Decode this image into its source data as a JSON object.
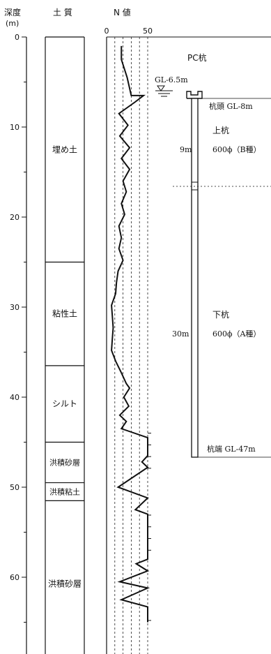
{
  "headers": {
    "depth": "深度",
    "depth_unit": "(m)",
    "soil": "土 質",
    "n_value": "N 値"
  },
  "depth_axis": {
    "min": 0,
    "max": 70,
    "ticks": [
      {
        "v": 0,
        "label": "0"
      },
      {
        "v": 10,
        "label": "10"
      },
      {
        "v": 20,
        "label": "20"
      },
      {
        "v": 30,
        "label": "30"
      },
      {
        "v": 40,
        "label": "40"
      },
      {
        "v": 50,
        "label": "50"
      },
      {
        "v": 60,
        "label": "60"
      }
    ]
  },
  "n_axis": {
    "min": 0,
    "max": 50,
    "ticks": [
      {
        "v": 0,
        "label": "0"
      },
      {
        "v": 50,
        "label": "50"
      }
    ],
    "grid": [
      10,
      20,
      30,
      40,
      50
    ]
  },
  "soil_layers": [
    {
      "name": "埋め土",
      "from": 0,
      "to": 25
    },
    {
      "name": "粘性土",
      "from": 25,
      "to": 36.5
    },
    {
      "name": "シルト",
      "from": 36.5,
      "to": 45
    },
    {
      "name": "洪積砂層",
      "from": 45,
      "to": 49.5
    },
    {
      "name": "洪積粘土",
      "from": 49.5,
      "to": 51.5
    },
    {
      "name": "洪積砂層",
      "from": 51.5,
      "to": 70
    }
  ],
  "chart_data": {
    "type": "line",
    "xlabel": "N 値",
    "ylabel": "深度 (m)",
    "xlim": [
      0,
      50
    ],
    "ylim": [
      0,
      70
    ],
    "series": [
      {
        "points": [
          [
            18,
            1
          ],
          [
            18,
            2.5
          ],
          [
            25,
            4.5
          ],
          [
            30,
            6.5
          ],
          [
            45,
            6.5
          ],
          [
            35,
            7.2
          ],
          [
            15,
            8.5
          ],
          [
            26,
            9.8
          ],
          [
            16,
            11
          ],
          [
            28,
            12.3
          ],
          [
            18,
            13.5
          ],
          [
            28,
            14.7
          ],
          [
            20,
            16
          ],
          [
            24,
            17.2
          ],
          [
            18,
            18.5
          ],
          [
            22,
            19.7
          ],
          [
            15,
            21
          ],
          [
            18,
            22.3
          ],
          [
            15,
            23.5
          ],
          [
            20,
            24.8
          ],
          [
            14,
            26
          ],
          [
            12,
            27.3
          ],
          [
            11,
            28.5
          ],
          [
            6,
            29.8
          ],
          [
            7,
            31
          ],
          [
            8,
            32.3
          ],
          [
            7,
            33.5
          ],
          [
            6,
            34.8
          ],
          [
            11,
            36
          ],
          [
            18,
            37.3
          ],
          [
            24,
            38.5
          ],
          [
            28,
            39
          ],
          [
            21,
            40
          ],
          [
            27,
            41
          ],
          [
            16,
            42
          ],
          [
            24,
            42.7
          ],
          [
            18,
            43.5
          ],
          [
            50,
            44.5
          ],
          [
            50,
            45.5
          ],
          [
            50,
            46.5
          ],
          [
            43,
            47.2
          ],
          [
            50,
            47.8
          ],
          [
            14,
            50
          ],
          [
            50,
            51.2
          ],
          [
            35,
            52.5
          ],
          [
            50,
            53
          ],
          [
            50,
            58
          ],
          [
            36,
            58.5
          ],
          [
            50,
            59.3
          ],
          [
            16,
            60.5
          ],
          [
            50,
            61.2
          ],
          [
            18,
            62.5
          ],
          [
            50,
            63.3
          ],
          [
            50,
            65
          ]
        ]
      }
    ]
  },
  "pile": {
    "title": "PC杭",
    "gl_label": "GL-6.5m",
    "head_label": "杭頭  GL-8m",
    "upper_name": "上杭",
    "upper_len": "9m",
    "upper_spec": "600ϕ（B種）",
    "lower_name": "下杭",
    "lower_len": "30m",
    "lower_spec": "600ϕ（A種）",
    "tip_label": "杭端  GL-47m"
  }
}
